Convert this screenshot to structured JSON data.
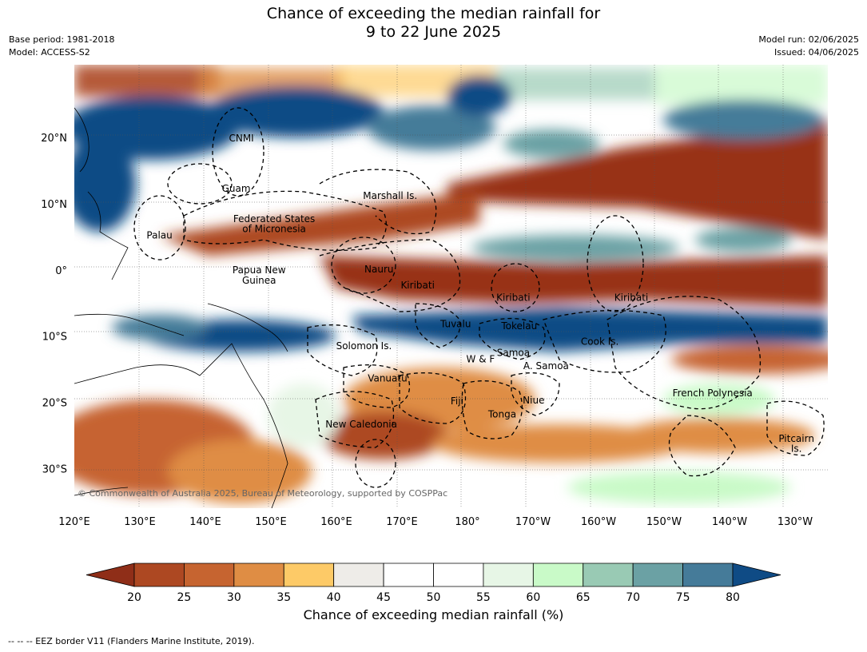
{
  "title_line1": "Chance of exceeding the median rainfall for",
  "title_line2": "9 to 22 June 2025",
  "meta_left": [
    "Base period: 1981-2018",
    "Model: ACCESS-S2"
  ],
  "meta_right": [
    "Model run: 02/06/2025",
    "Issued: 04/06/2025"
  ],
  "copyright": "© Commonwealth of Australia 2025, Bureau of Meteorology, supported by COSPPac",
  "footnote": "--  --  -- EEZ border V11 (Flanders Marine Institute, 2019).",
  "map": {
    "lon_range": [
      120,
      235
    ],
    "lat_range": [
      -36,
      31
    ],
    "lat_ticks": [
      {
        "value": 20,
        "label": "20°N"
      },
      {
        "value": 10,
        "label": "10°N"
      },
      {
        "value": 0,
        "label": "0°"
      },
      {
        "value": -10,
        "label": "10°S"
      },
      {
        "value": -20,
        "label": "20°S"
      },
      {
        "value": -30,
        "label": "30°S"
      }
    ],
    "lon_ticks": [
      {
        "value": 120,
        "label": "120°E"
      },
      {
        "value": 130,
        "label": "130°E"
      },
      {
        "value": 140,
        "label": "140°E"
      },
      {
        "value": 150,
        "label": "150°E"
      },
      {
        "value": 160,
        "label": "160°E"
      },
      {
        "value": 170,
        "label": "170°E"
      },
      {
        "value": 180,
        "label": "180°"
      },
      {
        "value": 190,
        "label": "170°W"
      },
      {
        "value": 200,
        "label": "160°W"
      },
      {
        "value": 210,
        "label": "150°W"
      },
      {
        "value": 220,
        "label": "140°W"
      },
      {
        "value": 230,
        "label": "130°W"
      }
    ],
    "regions": [
      {
        "name": "CNMI",
        "lon": 145.5,
        "lat": 19.9
      },
      {
        "name": "Guam",
        "lon": 144.7,
        "lat": 12.3
      },
      {
        "name": "Marshall Is.",
        "lon": 168.2,
        "lat": 11.2
      },
      {
        "name": "Federated States",
        "lon": 150.5,
        "lat": 7.7
      },
      {
        "name": "of Micronesia",
        "lon": 150.5,
        "lat": 6.2
      },
      {
        "name": "Palau",
        "lon": 133,
        "lat": 5.2
      },
      {
        "name": "Papua New",
        "lon": 148.2,
        "lat": 0
      },
      {
        "name": "Guinea",
        "lon": 148.2,
        "lat": -1.6
      },
      {
        "name": "Nauru",
        "lon": 166.5,
        "lat": 0.1
      },
      {
        "name": "Kiribati",
        "lon": 172.4,
        "lat": -2.3
      },
      {
        "name": "Kiribati",
        "lon": 187,
        "lat": -4.2
      },
      {
        "name": "Kiribati",
        "lon": 205,
        "lat": -4.2
      },
      {
        "name": "Tuvalu",
        "lon": 178.2,
        "lat": -8.2
      },
      {
        "name": "Tokelau",
        "lon": 187.9,
        "lat": -8.5
      },
      {
        "name": "Cook Is.",
        "lon": 200.2,
        "lat": -10.8
      },
      {
        "name": "Solomon Is.",
        "lon": 164.2,
        "lat": -11.5
      },
      {
        "name": "Samoa",
        "lon": 187,
        "lat": -12.5
      },
      {
        "name": "W & F",
        "lon": 182,
        "lat": -13.5
      },
      {
        "name": "A. Samoa",
        "lon": 192,
        "lat": -14.5
      },
      {
        "name": "Vanuatu",
        "lon": 167.8,
        "lat": -16.4
      },
      {
        "name": "Fiji",
        "lon": 178.4,
        "lat": -19.8
      },
      {
        "name": "Niue",
        "lon": 190.1,
        "lat": -19.7
      },
      {
        "name": "French Polynesia",
        "lon": 217.4,
        "lat": -18.6
      },
      {
        "name": "Tonga",
        "lon": 185.3,
        "lat": -21.8
      },
      {
        "name": "New Caledonia",
        "lon": 163.8,
        "lat": -23.3
      },
      {
        "name": "Pitcairn",
        "lon": 230.2,
        "lat": -25.5
      },
      {
        "name": "Is.",
        "lon": 230.2,
        "lat": -27
      }
    ]
  },
  "colorbar": {
    "title": "Chance of exceeding median rainfall (%)",
    "ticks": [
      "20",
      "25",
      "30",
      "35",
      "40",
      "45",
      "50",
      "55",
      "60",
      "65",
      "70",
      "75",
      "80"
    ],
    "colors": [
      "#8f2e18",
      "#ad4822",
      "#c66430",
      "#df8d44",
      "#fdca67",
      "#eeece8",
      "#ffffff",
      "#ffffff",
      "#e7f6e6",
      "#c9fac8",
      "#99cab4",
      "#6ba1a4",
      "#457b99",
      "#0f4b85"
    ]
  },
  "colors": {
    "dry_strong": "#983318",
    "dry_mid": "#c66430",
    "dry_light": "#fdca67",
    "wet_light": "#c9fac8",
    "wet_mid": "#6ba1a4",
    "wet_strong": "#0f4b85"
  }
}
